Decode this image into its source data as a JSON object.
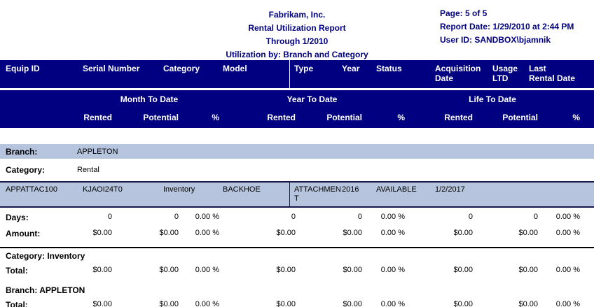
{
  "report": {
    "title_lines": [
      "Fabrikam, Inc.",
      "Rental Utilization Report",
      "Through 1/2010",
      "Utilization by: Branch and Category"
    ],
    "page_info": "Page: 5 of 5",
    "report_date": "Report Date: 1/29/2010 at 2:44 PM",
    "user_id": "User ID: SANDBOX\\bjamnik"
  },
  "columns": {
    "equip_id": "Equip ID",
    "serial_number": "Serial Number",
    "category": "Category",
    "model": "Model",
    "type": "Type",
    "year": "Year",
    "status": "Status",
    "acquisition_date": "Acquisition\nDate",
    "usage_ltd": "Usage\nLTD",
    "last_rental_date": "Last\nRental Date"
  },
  "periods": {
    "mtd": "Month To Date",
    "ytd": "Year To Date",
    "ltd": "Life To Date"
  },
  "measures": {
    "rented": "Rented",
    "potential": "Potential",
    "pct": "%"
  },
  "body": {
    "branch_label": "Branch:",
    "branch_value": "APPLETON",
    "category_label": "Category:",
    "category_value": "Rental",
    "equipment": {
      "equip_id": "APPATTAC100",
      "serial_number": "KJAOI24T0",
      "category": "Inventory",
      "model": "BACKHOE",
      "type": "ATTACHMENT",
      "year": "2016",
      "status": "AVAILABLE",
      "acquisition_date": "1/2/2017",
      "usage_ltd": "",
      "last_rental_date": ""
    },
    "days": {
      "label": "Days:",
      "values": [
        "0",
        "0",
        "0.00 %",
        "0",
        "0",
        "0.00 %",
        "0",
        "0",
        "0.00 %"
      ]
    },
    "amount": {
      "label": "Amount:",
      "values": [
        "$0.00",
        "$0.00",
        "0.00 %",
        "$0.00",
        "$0.00",
        "0.00 %",
        "$0.00",
        "$0.00",
        "0.00 %"
      ]
    },
    "category_total": {
      "header": "Category: Inventory",
      "label": "Total:",
      "values": [
        "$0.00",
        "$0.00",
        "0.00 %",
        "$0.00",
        "$0.00",
        "0.00 %",
        "$0.00",
        "$0.00",
        "0.00 %"
      ]
    },
    "branch_total": {
      "header": "Branch: APPLETON",
      "label": "Total:",
      "values": [
        "$0.00",
        "$0.00",
        "0.00 %",
        "$0.00",
        "$0.00",
        "0.00 %",
        "$0.00",
        "$0.00",
        "0.00 %"
      ]
    }
  },
  "colors": {
    "navy": "#000080",
    "band_blue": "#b6c4dd",
    "row_border": "#16164c",
    "header_text": "#ffffff"
  }
}
